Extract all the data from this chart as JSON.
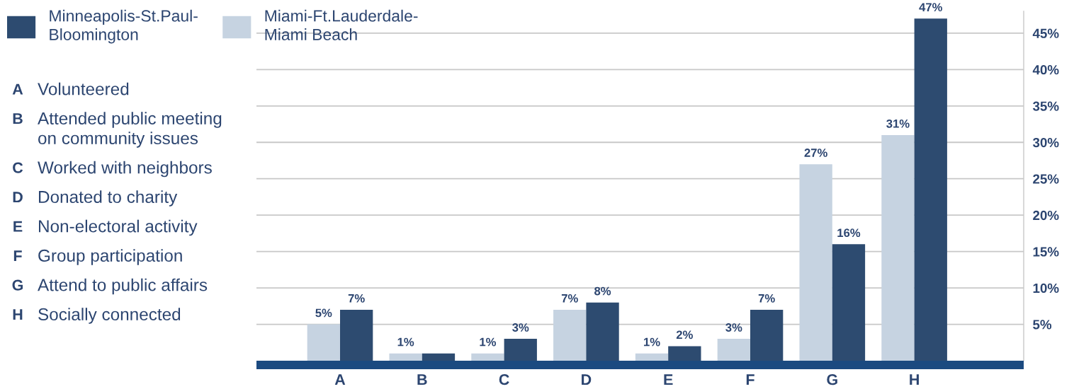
{
  "chart_data": {
    "type": "bar",
    "categories": [
      "A",
      "B",
      "C",
      "D",
      "E",
      "F",
      "G",
      "H"
    ],
    "series": [
      {
        "name": "Miami-Ft.Lauderdale-Miami Beach",
        "color": "#c6d3e1",
        "values": [
          5,
          1,
          1,
          7,
          1,
          3,
          27,
          31
        ],
        "value_labels": [
          "5%",
          "1%",
          "1%",
          "7%",
          "1%",
          "3%",
          "27%",
          "31%"
        ]
      },
      {
        "name": "Minneapolis-St.Paul-Bloomington",
        "color": "#2d4b70",
        "values": [
          7,
          1,
          3,
          8,
          2,
          7,
          16,
          47
        ],
        "value_labels": [
          "7%",
          null,
          "3%",
          "8%",
          "2%",
          "7%",
          "16%",
          "47%"
        ]
      }
    ],
    "ylim": [
      0,
      48
    ],
    "yticks": [
      {
        "value": 5,
        "label": "5%"
      },
      {
        "value": 10,
        "label": "10%"
      },
      {
        "value": 15,
        "label": "15%"
      },
      {
        "value": 20,
        "label": "20%"
      },
      {
        "value": 25,
        "label": "25%"
      },
      {
        "value": 30,
        "label": "30%"
      },
      {
        "value": 35,
        "label": "35%"
      },
      {
        "value": 40,
        "label": "40%"
      },
      {
        "value": 45,
        "label": "45%"
      }
    ],
    "grid": "y",
    "legend": "top left",
    "annotations": [
      "A Volunteered",
      "B Attended public meeting on community issues",
      "C Worked with neighbors",
      "D Donated to charity",
      "E Non-electoral activity",
      "F Group participation",
      "G Attend to public affairs",
      "H Socially connected"
    ]
  }
}
